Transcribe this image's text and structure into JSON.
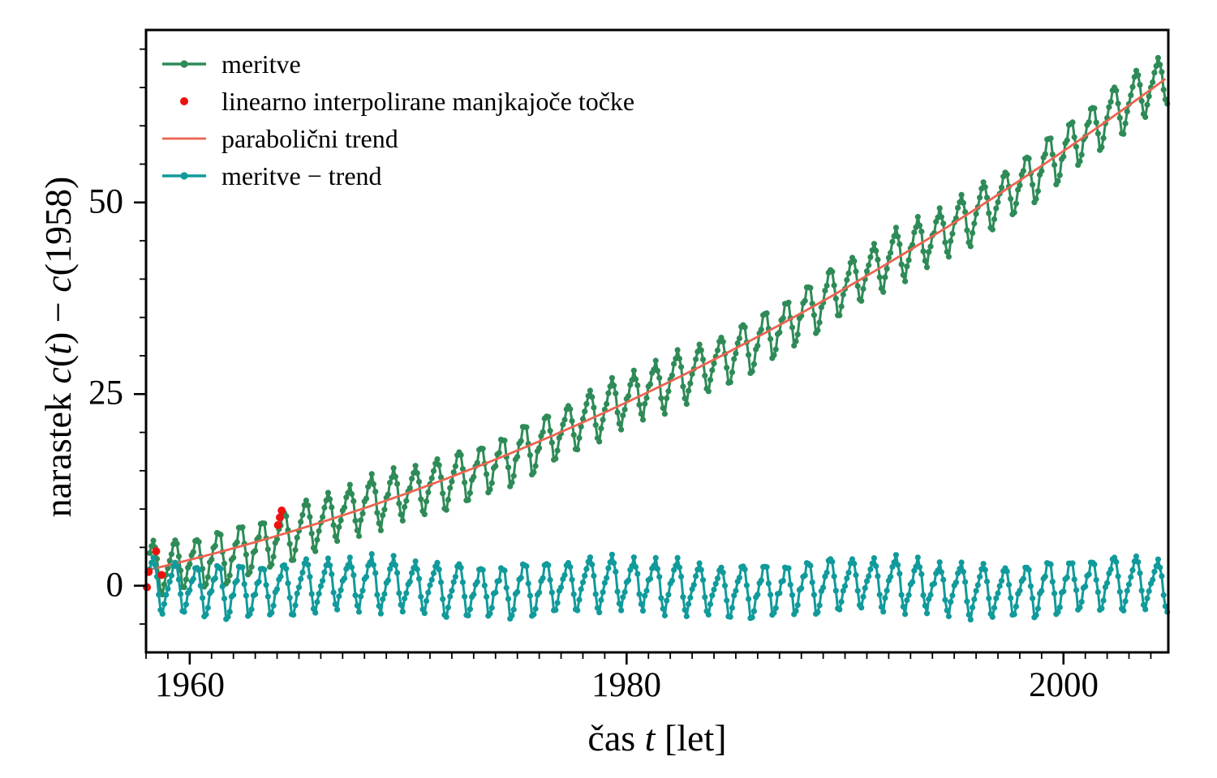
{
  "figure": {
    "background": "#ffffff",
    "text_color": "#000000",
    "axis_color": "#000000"
  },
  "labels": {
    "xlabel_segments": [
      {
        "t": "čas ",
        "i": false
      },
      {
        "t": "t",
        "i": true
      },
      {
        "t": " [let]",
        "i": false
      }
    ],
    "ylabel_segments": [
      {
        "t": "narastek ",
        "i": false
      },
      {
        "t": "c",
        "i": true
      },
      {
        "t": "(",
        "i": false
      },
      {
        "t": "t",
        "i": true
      },
      {
        "t": ") − ",
        "i": false
      },
      {
        "t": "c",
        "i": true
      },
      {
        "t": "(1958)",
        "i": false
      }
    ]
  },
  "chart_data": {
    "type": "line",
    "title": "",
    "xlabel": "čas t [let]",
    "ylabel": "narastek c(t) − c(1958)",
    "xlim": [
      1958.0,
      2004.8
    ],
    "ylim": [
      -8.7,
      72.5
    ],
    "xticks": [
      1960,
      1980,
      2000
    ],
    "yticks": [
      0,
      25,
      50
    ],
    "x_minor_step": 1,
    "y_minor_step": 5,
    "grid": false,
    "legend_position": "upper left, no frame",
    "sampling": {
      "start_year": 1958,
      "start_month_index": 2,
      "end": 2004.75,
      "points_per_year": 12
    },
    "trend_quadratic": {
      "t0": 1958,
      "a": 0.0153,
      "b": 0.66,
      "c": 2.0
    },
    "seasonal_profile_by_month": [
      -0.2,
      0.7,
      1.5,
      2.6,
      3.1,
      2.4,
      0.8,
      -1.3,
      -3.3,
      -3.6,
      -2.3,
      -1.0
    ],
    "noise_terms": [
      {
        "amp": 0.32,
        "freq": 3.1,
        "phase": 0.4
      },
      {
        "amp": 0.25,
        "freq": 0.37,
        "phase": 1.2
      },
      {
        "amp": 0.55,
        "freq": 0.045,
        "phase": 2.6
      }
    ],
    "series": [
      {
        "name": "meritve",
        "color": "#2e8b57",
        "style": "line+markers",
        "composition": "trend+seasonal+noise"
      },
      {
        "name": "linearno interpolirane manjkajoče točke",
        "color": "#ee1111",
        "style": "markers",
        "points": [
          [
            1958.04,
            -0.2
          ],
          [
            1958.12,
            1.8
          ],
          [
            1958.46,
            4.5
          ],
          [
            1958.71,
            1.4
          ],
          [
            1964.04,
            7.9
          ],
          [
            1964.13,
            8.9
          ],
          [
            1964.21,
            9.8
          ]
        ]
      },
      {
        "name": "parabolični trend",
        "color": "#ec6350",
        "style": "line",
        "composition": "trend"
      },
      {
        "name": "meritve − trend",
        "color": "#119a9b",
        "style": "line+markers",
        "composition": "seasonal+noise"
      }
    ]
  }
}
